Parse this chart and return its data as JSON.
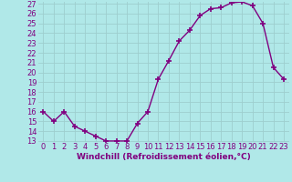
{
  "x": [
    0,
    1,
    2,
    3,
    4,
    5,
    6,
    7,
    8,
    9,
    10,
    11,
    12,
    13,
    14,
    15,
    16,
    17,
    18,
    19,
    20,
    21,
    22,
    23
  ],
  "y": [
    16,
    15,
    16,
    14.5,
    14,
    13.5,
    13,
    13,
    13,
    14.8,
    16,
    19.3,
    21.2,
    23.2,
    24.3,
    25.8,
    26.5,
    26.6,
    27.1,
    27.2,
    26.8,
    25,
    20.5,
    19.3
  ],
  "line_color": "#800080",
  "marker": "+",
  "bg_color": "#b0e8e8",
  "grid_color": "#9ecece",
  "xlabel": "Windchill (Refroidissement éolien,°C)",
  "xlabel_fontsize": 6.5,
  "tick_fontsize": 6.0,
  "ylim": [
    13,
    27
  ],
  "yticks": [
    13,
    14,
    15,
    16,
    17,
    18,
    19,
    20,
    21,
    22,
    23,
    24,
    25,
    26,
    27
  ],
  "xticks": [
    0,
    1,
    2,
    3,
    4,
    5,
    6,
    7,
    8,
    9,
    10,
    11,
    12,
    13,
    14,
    15,
    16,
    17,
    18,
    19,
    20,
    21,
    22,
    23
  ],
  "xlim": [
    -0.5,
    23.5
  ]
}
